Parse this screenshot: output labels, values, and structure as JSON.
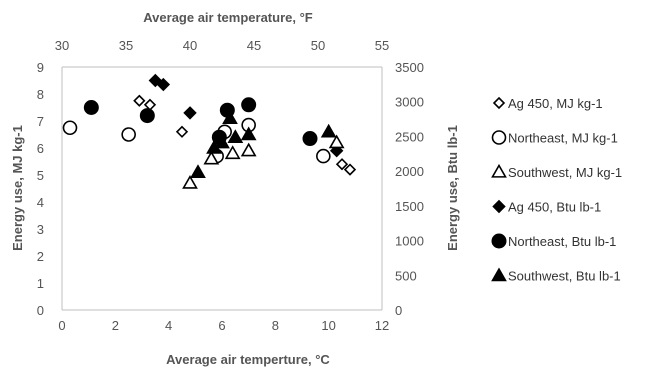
{
  "chart_data": {
    "type": "scatter",
    "title": "",
    "xlabel": "Average air temperture, °C",
    "x2label": "Average air temperature, °F",
    "ylabel": "Energy use, MJ kg-1",
    "y2label": "Energy use, Btu lb-1",
    "xlim": [
      0,
      12
    ],
    "x2lim": [
      30,
      55
    ],
    "ylim": [
      0,
      9
    ],
    "y2lim": [
      0,
      3500
    ],
    "xticks": [
      "0",
      "2",
      "4",
      "6",
      "8",
      "10",
      "12"
    ],
    "x2ticks": [
      "30",
      "35",
      "40",
      "45",
      "50",
      "55"
    ],
    "yticks": [
      "0",
      "1",
      "2",
      "3",
      "4",
      "5",
      "6",
      "7",
      "8",
      "9"
    ],
    "y2ticks": [
      "0",
      "500",
      "1000",
      "1500",
      "2000",
      "2500",
      "3000",
      "3500"
    ],
    "grid": false,
    "legend_position": "right",
    "series": [
      {
        "name": "Ag 450, MJ kg-1",
        "marker": "diamond-open",
        "axis": "primary",
        "x": [
          2.9,
          3.3,
          4.5,
          10.5,
          10.8
        ],
        "y": [
          7.75,
          7.6,
          6.6,
          5.4,
          5.2
        ]
      },
      {
        "name": "Northeast, MJ kg-1",
        "marker": "circle-open",
        "axis": "primary",
        "x": [
          0.3,
          2.5,
          5.8,
          6.1,
          7.0,
          9.8
        ],
        "y": [
          6.75,
          6.5,
          5.7,
          6.6,
          6.85,
          5.7
        ]
      },
      {
        "name": "Southwest, MJ kg-1",
        "marker": "triangle-open",
        "axis": "primary",
        "x": [
          4.8,
          5.6,
          6.4,
          7.0,
          10.3
        ],
        "y": [
          4.7,
          5.6,
          5.8,
          5.9,
          6.2
        ]
      },
      {
        "name": "Ag 450, Btu lb-1",
        "marker": "diamond-filled",
        "axis": "primary",
        "x": [
          3.5,
          3.8,
          4.8,
          10.3
        ],
        "y": [
          8.5,
          8.35,
          7.3,
          5.9
        ]
      },
      {
        "name": "Northeast, Btu lb-1",
        "marker": "circle-filled",
        "axis": "primary",
        "x": [
          1.1,
          3.2,
          5.9,
          6.2,
          7.0,
          9.3
        ],
        "y": [
          7.5,
          7.2,
          6.4,
          7.4,
          7.6,
          6.35
        ]
      },
      {
        "name": "Southwest, Btu lb-1",
        "marker": "triangle-filled",
        "axis": "primary",
        "x": [
          5.1,
          5.7,
          6.0,
          6.3,
          6.5,
          7.0,
          10.0
        ],
        "y": [
          5.1,
          6.0,
          6.2,
          7.1,
          6.4,
          6.5,
          6.6
        ]
      }
    ]
  }
}
